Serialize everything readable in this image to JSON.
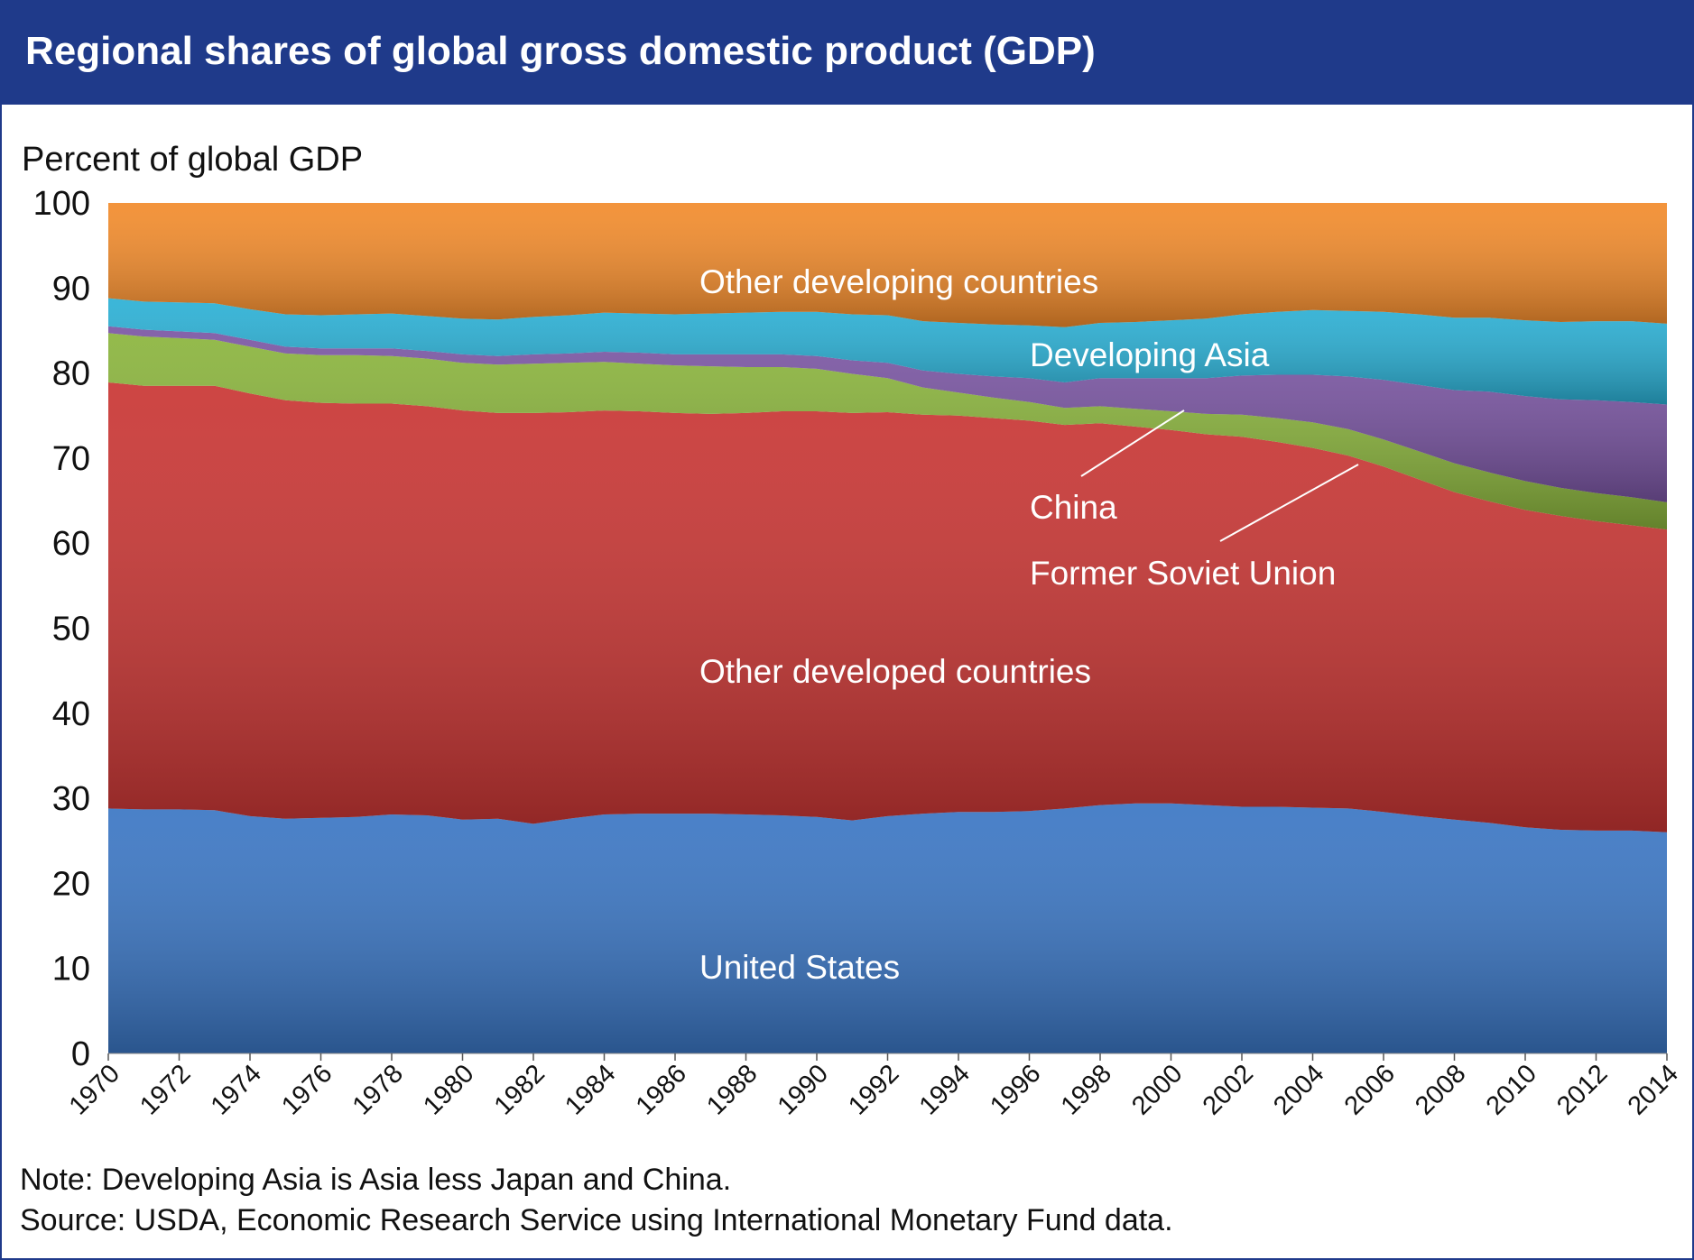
{
  "title": "Regional shares of global gross domestic product (GDP)",
  "notes": {
    "note": "Note: Developing Asia is Asia less Japan and China.",
    "source": "Source: USDA, Economic Research Service using International Monetary Fund data."
  },
  "chart_data": {
    "type": "area",
    "stacked": true,
    "ylabel": "Percent of global GDP",
    "xlabel": "",
    "ylim": [
      0,
      100
    ],
    "yticks": [
      0,
      10,
      20,
      30,
      40,
      50,
      60,
      70,
      80,
      90,
      100
    ],
    "grid": false,
    "x": [
      1970,
      1971,
      1972,
      1973,
      1974,
      1975,
      1976,
      1977,
      1978,
      1979,
      1980,
      1981,
      1982,
      1983,
      1984,
      1985,
      1986,
      1987,
      1988,
      1989,
      1990,
      1991,
      1992,
      1993,
      1994,
      1995,
      1996,
      1997,
      1998,
      1999,
      2000,
      2001,
      2002,
      2003,
      2004,
      2005,
      2006,
      2007,
      2008,
      2009,
      2010,
      2011,
      2012,
      2013,
      2014
    ],
    "xticks": [
      1970,
      1972,
      1974,
      1976,
      1978,
      1980,
      1982,
      1984,
      1986,
      1988,
      1990,
      1992,
      1994,
      1996,
      1998,
      2000,
      2002,
      2004,
      2006,
      2008,
      2010,
      2012,
      2014
    ],
    "series": [
      {
        "name": "United States",
        "color": "#3a76c4",
        "values": [
          28.8,
          28.7,
          28.7,
          28.6,
          27.9,
          27.6,
          27.7,
          27.8,
          28.1,
          28.0,
          27.5,
          27.6,
          27.0,
          27.6,
          28.1,
          28.2,
          28.2,
          28.2,
          28.1,
          28.0,
          27.8,
          27.4,
          27.9,
          28.2,
          28.4,
          28.4,
          28.5,
          28.8,
          29.2,
          29.4,
          29.4,
          29.2,
          29.0,
          29.0,
          28.9,
          28.8,
          28.4,
          27.9,
          27.5,
          27.1,
          26.6,
          26.3,
          26.2,
          26.2,
          26.0
        ]
      },
      {
        "name": "Other developed countries",
        "color": "#c93533",
        "values": [
          50.1,
          49.8,
          49.8,
          49.9,
          49.7,
          49.2,
          48.8,
          48.6,
          48.3,
          48.1,
          48.1,
          47.7,
          48.3,
          47.8,
          47.5,
          47.3,
          47.1,
          47.0,
          47.2,
          47.5,
          47.7,
          47.9,
          47.5,
          46.9,
          46.6,
          46.3,
          45.9,
          45.1,
          44.9,
          44.3,
          43.9,
          43.6,
          43.5,
          42.9,
          42.3,
          41.5,
          40.6,
          39.6,
          38.5,
          37.8,
          37.3,
          36.9,
          36.4,
          35.9,
          35.6
        ]
      },
      {
        "name": "Former Soviet Union",
        "color": "#8ab43c",
        "values": [
          5.8,
          5.8,
          5.6,
          5.4,
          5.5,
          5.5,
          5.6,
          5.7,
          5.6,
          5.6,
          5.6,
          5.7,
          5.8,
          5.8,
          5.7,
          5.6,
          5.6,
          5.6,
          5.4,
          5.2,
          5.0,
          4.6,
          4.0,
          3.2,
          2.7,
          2.4,
          2.2,
          2.0,
          2.0,
          2.1,
          2.2,
          2.4,
          2.6,
          2.8,
          3.0,
          3.1,
          3.2,
          3.3,
          3.4,
          3.4,
          3.4,
          3.3,
          3.3,
          3.3,
          3.2
        ]
      },
      {
        "name": "China",
        "color": "#7a55a3",
        "values": [
          0.8,
          0.8,
          0.8,
          0.8,
          0.8,
          0.8,
          0.8,
          0.8,
          0.9,
          0.9,
          1.0,
          1.0,
          1.1,
          1.1,
          1.2,
          1.3,
          1.3,
          1.4,
          1.5,
          1.5,
          1.5,
          1.6,
          1.8,
          2.0,
          2.2,
          2.5,
          2.8,
          3.0,
          3.3,
          3.6,
          3.9,
          4.2,
          4.6,
          5.1,
          5.6,
          6.2,
          7.0,
          7.8,
          8.6,
          9.5,
          10.0,
          10.4,
          10.9,
          11.2,
          11.5
        ]
      },
      {
        "name": "Developing Asia",
        "color": "#2ab0d5",
        "values": [
          3.3,
          3.3,
          3.4,
          3.5,
          3.6,
          3.8,
          3.9,
          4.0,
          4.1,
          4.1,
          4.2,
          4.3,
          4.4,
          4.5,
          4.6,
          4.6,
          4.7,
          4.8,
          4.9,
          5.0,
          5.2,
          5.4,
          5.6,
          5.8,
          6.0,
          6.1,
          6.2,
          6.5,
          6.5,
          6.6,
          6.8,
          7.0,
          7.2,
          7.4,
          7.6,
          7.7,
          8.0,
          8.3,
          8.5,
          8.7,
          8.9,
          9.1,
          9.3,
          9.5,
          9.5
        ]
      },
      {
        "name": "Other developing countries",
        "color": "#f28b2b",
        "values": [
          11.2,
          11.6,
          11.7,
          11.8,
          12.5,
          13.1,
          13.2,
          13.1,
          13.0,
          13.3,
          13.6,
          13.7,
          13.4,
          13.2,
          12.9,
          13.0,
          13.1,
          13.0,
          12.9,
          12.8,
          12.8,
          13.1,
          13.2,
          13.9,
          14.1,
          14.3,
          14.4,
          14.6,
          14.1,
          14.0,
          13.8,
          13.6,
          13.1,
          12.8,
          12.6,
          12.7,
          12.8,
          13.1,
          13.5,
          13.5,
          13.8,
          14.0,
          13.9,
          13.9,
          14.2
        ]
      }
    ],
    "annotations": [
      {
        "text": "Other developing countries",
        "series": "Other developing countries"
      },
      {
        "text": "Developing Asia",
        "series": "Developing Asia"
      },
      {
        "text": "China",
        "series": "China"
      },
      {
        "text": "Former Soviet Union",
        "series": "Former Soviet Union"
      },
      {
        "text": "Other developed countries",
        "series": "Other developed countries"
      },
      {
        "text": "United States",
        "series": "United States"
      }
    ]
  }
}
